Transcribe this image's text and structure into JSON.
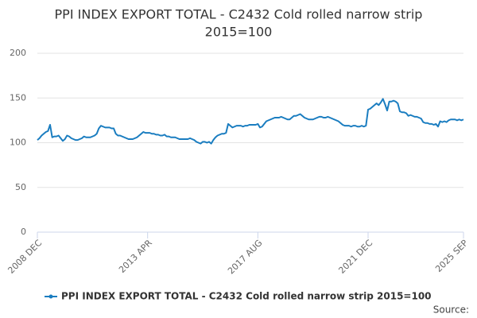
{
  "chart_data": {
    "type": "line",
    "title": [
      "PPI INDEX EXPORT TOTAL - C2432 Cold rolled narrow strip",
      "2015=100"
    ],
    "source": "Source:",
    "categories": [
      "2008 DEC",
      null,
      null,
      null,
      null,
      null,
      null,
      null,
      null,
      null,
      null,
      null,
      null,
      null,
      null,
      null,
      null,
      null,
      null,
      null,
      null,
      null,
      null,
      null,
      null,
      null,
      null,
      null,
      null,
      null,
      null,
      null,
      null,
      null,
      null,
      null,
      null,
      null,
      null,
      null,
      null,
      null,
      null,
      null,
      null,
      null,
      null,
      null,
      null,
      null,
      null,
      null,
      "2013 APR",
      null,
      null,
      null,
      null,
      null,
      null,
      null,
      null,
      null,
      null,
      null,
      null,
      null,
      null,
      null,
      null,
      null,
      null,
      null,
      null,
      null,
      null,
      null,
      null,
      null,
      null,
      null,
      null,
      null,
      null,
      null,
      null,
      null,
      null,
      null,
      null,
      null,
      null,
      null,
      null,
      null,
      null,
      null,
      null,
      null,
      null,
      null,
      null,
      null,
      null,
      null,
      "2017 AUG",
      null,
      null,
      null,
      null,
      null,
      null,
      null,
      null,
      null,
      null,
      null,
      null,
      null,
      null,
      null,
      null,
      null,
      null,
      null,
      null,
      null,
      null,
      null,
      null,
      null,
      null,
      null,
      null,
      null,
      null,
      null,
      null,
      null,
      null,
      null,
      null,
      null,
      null,
      null,
      null,
      null,
      null,
      null,
      null,
      null,
      null,
      null,
      null,
      null,
      null,
      null,
      "2021 DEC",
      null,
      null,
      null,
      null,
      null,
      null,
      null,
      null,
      null,
      null,
      null,
      null,
      null,
      null,
      null,
      null,
      null,
      null,
      null,
      null,
      null,
      null,
      null,
      null,
      null,
      null,
      null,
      null,
      null,
      null,
      null,
      null,
      null,
      null,
      null,
      null,
      null,
      null,
      null,
      null,
      null,
      null,
      null,
      null,
      "2025 SEP"
    ],
    "series": [
      {
        "name": "PPI INDEX EXPORT TOTAL - C2432 Cold rolled narrow strip 2015=100",
        "color": "#1a7dc0",
        "values": [
          103,
          105,
          108,
          110,
          112,
          113,
          120,
          106,
          107,
          107,
          108,
          105,
          102,
          104,
          108,
          107,
          105,
          104,
          103,
          103,
          104,
          105,
          107,
          106,
          106,
          106,
          107,
          108,
          110,
          116,
          119,
          118,
          117,
          117,
          117,
          116,
          116,
          110,
          108,
          108,
          107,
          106,
          105,
          104,
          104,
          104,
          105,
          106,
          108,
          110,
          112,
          111,
          111,
          111,
          110,
          110,
          109,
          109,
          108,
          108,
          109,
          107,
          107,
          106,
          106,
          106,
          105,
          104,
          104,
          104,
          104,
          104,
          105,
          104,
          103,
          101,
          100,
          99,
          101,
          101,
          100,
          101,
          99,
          103,
          106,
          108,
          109,
          110,
          110,
          111,
          121,
          119,
          117,
          118,
          119,
          119,
          119,
          118,
          119,
          119,
          120,
          120,
          120,
          120,
          121,
          117,
          118,
          121,
          124,
          125,
          126,
          127,
          128,
          128,
          128,
          129,
          128,
          127,
          126,
          126,
          128,
          130,
          130,
          131,
          132,
          130,
          128,
          127,
          126,
          126,
          126,
          127,
          128,
          129,
          129,
          128,
          128,
          129,
          128,
          127,
          126,
          125,
          124,
          122,
          120,
          119,
          119,
          119,
          118,
          119,
          119,
          118,
          118,
          119,
          118,
          119,
          137,
          138,
          140,
          142,
          144,
          142,
          145,
          149,
          143,
          136,
          146,
          146,
          147,
          146,
          144,
          135,
          134,
          134,
          133,
          130,
          131,
          130,
          129,
          129,
          128,
          127,
          123,
          122,
          122,
          121,
          121,
          120,
          121,
          118,
          124,
          123,
          124,
          123,
          125,
          126,
          126,
          126,
          125,
          126,
          125,
          126
        ]
      }
    ],
    "ylim": [
      0,
      200
    ],
    "yticks": [
      0,
      50,
      100,
      150,
      200
    ],
    "grid": true
  }
}
